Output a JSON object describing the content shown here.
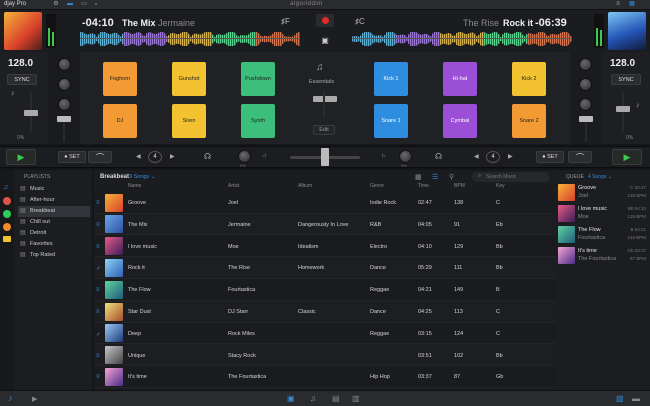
{
  "app": {
    "title": "djay Pro",
    "brand": "algoriddim"
  },
  "deck_left": {
    "time": "-04:10",
    "title": "The Mix",
    "artist": "Jermaine",
    "key": "F",
    "bpm": "128.0",
    "sync": "SYNC",
    "pitch": "0%"
  },
  "deck_right": {
    "time": "-06:39",
    "title": "Rock it",
    "artist": "The Rise",
    "key": "C",
    "bpm": "128.0",
    "sync": "SYNC",
    "pitch": "0%"
  },
  "sampler": {
    "left_pads": [
      {
        "label": "Foghorn",
        "color": "#f29a34"
      },
      {
        "label": "Gunshot",
        "color": "#f2c230"
      },
      {
        "label": "Pushdown",
        "color": "#3bbf7a"
      },
      {
        "label": "DJ",
        "color": "#f29a34"
      },
      {
        "label": "Siren",
        "color": "#f2c230"
      },
      {
        "label": "Synth",
        "color": "#3bbf7a"
      }
    ],
    "right_pads": [
      {
        "label": "Kick 1",
        "color": "#2f8de0"
      },
      {
        "label": "Hi-hat",
        "color": "#9b4fd6"
      },
      {
        "label": "Kick 2",
        "color": "#f2c230"
      },
      {
        "label": "Snare 1",
        "color": "#2f8de0"
      },
      {
        "label": "Cymbal",
        "color": "#9b4fd6"
      },
      {
        "label": "Snare 2",
        "color": "#f29a34"
      }
    ],
    "center_label": "Essentials",
    "edit_label": "Edit"
  },
  "transport": {
    "set_label": "SET",
    "loop_value": "4",
    "knob_left": "0%",
    "knob_right": "0%"
  },
  "sidebar": {
    "header": "PLAYLISTS",
    "items": [
      {
        "label": "Music"
      },
      {
        "label": "After-hour"
      },
      {
        "label": "Breakbeat"
      },
      {
        "label": "Chill out"
      },
      {
        "label": "Detroit"
      },
      {
        "label": "Favorites"
      },
      {
        "label": "Top Rated"
      }
    ]
  },
  "library": {
    "playlist": "Breakbeat",
    "count": "9 Songs",
    "search_placeholder": "Search Music",
    "columns": [
      "Name",
      "Artist",
      "Album",
      "Genre",
      "Time",
      "BPM",
      "Key"
    ],
    "rows": [
      {
        "name": "Groove",
        "artist": "Joel",
        "album": "",
        "genre": "Indie Rock",
        "time": "02:47",
        "bpm": "138",
        "key": "C"
      },
      {
        "name": "The Mix",
        "artist": "Jermaine",
        "album": "Dangerously In Love",
        "genre": "R&B",
        "time": "04:05",
        "bpm": "91",
        "key": "Eb"
      },
      {
        "name": "I love music",
        "artist": "Moe",
        "album": "Idealism",
        "genre": "Electro",
        "time": "04:10",
        "bpm": "129",
        "key": "Bb"
      },
      {
        "name": "Rock it",
        "artist": "The Rise",
        "album": "Homework",
        "genre": "Dance",
        "time": "05:29",
        "bpm": "111",
        "key": "Bb"
      },
      {
        "name": "The Flow",
        "artist": "Fourtastica",
        "album": "",
        "genre": "Reggae",
        "time": "04:21",
        "bpm": "149",
        "key": "B"
      },
      {
        "name": "Star Dust",
        "artist": "DJ Starr",
        "album": "Classic",
        "genre": "Dance",
        "time": "04:25",
        "bpm": "113",
        "key": "C"
      },
      {
        "name": "Deep",
        "artist": "Rock Miles",
        "album": "",
        "genre": "Reggae",
        "time": "03:15",
        "bpm": "124",
        "key": "C"
      },
      {
        "name": "Unique",
        "artist": "Stacy Rock",
        "album": "",
        "genre": "",
        "time": "03:51",
        "bpm": "102",
        "key": "Bb"
      },
      {
        "name": "It's time",
        "artist": "The Fourtastica",
        "album": "",
        "genre": "Hip Hop",
        "time": "03:37",
        "bpm": "87",
        "key": "Gb"
      }
    ]
  },
  "queue": {
    "header": "QUEUE",
    "count": "4 Songs",
    "items": [
      {
        "title": "Groove",
        "artist": "Joel",
        "key": "C 02:47",
        "bpm": "138 BPM"
      },
      {
        "title": "I love music",
        "artist": "Moe",
        "key": "Bb 04:10",
        "bpm": "129 BPM"
      },
      {
        "title": "The Flow",
        "artist": "Fourtastica",
        "key": "B 04:21",
        "bpm": "149 BPM"
      },
      {
        "title": "It's time",
        "artist": "The Fourtastica",
        "key": "Gb 03:37",
        "bpm": "87 BPM"
      }
    ]
  }
}
